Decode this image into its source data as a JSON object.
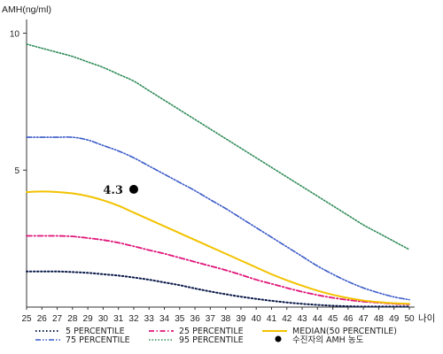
{
  "chart_data": {
    "type": "line",
    "ylabel": "AMH(ng/ml)",
    "xlabel": "나이",
    "x": [
      25,
      26,
      27,
      28,
      29,
      30,
      31,
      32,
      33,
      34,
      35,
      36,
      37,
      38,
      39,
      40,
      41,
      42,
      43,
      44,
      45,
      46,
      47,
      48,
      49,
      50
    ],
    "xlim": [
      25,
      50
    ],
    "ylim": [
      0,
      10.5
    ],
    "yticks": [
      5,
      10
    ],
    "grid": false,
    "legend_position": "bottom",
    "series": [
      {
        "name": "5 PERCENTILE",
        "color": "#0a1a4a",
        "style": "dotted",
        "values": [
          1.3,
          1.3,
          1.3,
          1.28,
          1.25,
          1.2,
          1.15,
          1.08,
          1.0,
          0.9,
          0.8,
          0.68,
          0.57,
          0.47,
          0.38,
          0.3,
          0.23,
          0.17,
          0.12,
          0.08,
          0.05,
          0.03,
          0.02,
          0.02,
          0.02,
          0.02
        ]
      },
      {
        "name": "25 PERCENTILE",
        "color": "#e0157a",
        "style": "dashdot",
        "values": [
          2.6,
          2.6,
          2.6,
          2.58,
          2.52,
          2.45,
          2.35,
          2.22,
          2.08,
          1.95,
          1.8,
          1.65,
          1.5,
          1.35,
          1.18,
          1.0,
          0.85,
          0.7,
          0.56,
          0.44,
          0.34,
          0.26,
          0.2,
          0.16,
          0.12,
          0.1
        ]
      },
      {
        "name": "MEDIAN(50 PERCENTILE)",
        "color": "#f2c200",
        "style": "solid",
        "values": [
          4.2,
          4.22,
          4.2,
          4.15,
          4.05,
          3.9,
          3.7,
          3.45,
          3.2,
          2.95,
          2.7,
          2.45,
          2.2,
          1.95,
          1.7,
          1.45,
          1.2,
          0.98,
          0.78,
          0.6,
          0.45,
          0.33,
          0.24,
          0.18,
          0.14,
          0.12
        ]
      },
      {
        "name": "75 PERCENTILE",
        "color": "#3a5ac8",
        "style": "dashdotdot",
        "values": [
          6.2,
          6.2,
          6.2,
          6.2,
          6.1,
          5.9,
          5.7,
          5.45,
          5.15,
          4.85,
          4.55,
          4.25,
          3.92,
          3.6,
          3.25,
          2.9,
          2.55,
          2.2,
          1.85,
          1.5,
          1.2,
          0.93,
          0.7,
          0.52,
          0.37,
          0.27
        ]
      },
      {
        "name": "95 PERCENTILE",
        "color": "#2e8b57",
        "style": "densedot",
        "values": [
          9.6,
          9.45,
          9.3,
          9.15,
          8.95,
          8.75,
          8.5,
          8.25,
          7.9,
          7.55,
          7.2,
          6.85,
          6.5,
          6.15,
          5.8,
          5.45,
          5.1,
          4.75,
          4.4,
          4.05,
          3.7,
          3.35,
          3.0,
          2.7,
          2.4,
          2.1
        ]
      }
    ],
    "points": [
      {
        "name": "수진자의 AMH 농도",
        "x": 32,
        "y": 4.3,
        "label": "4.3",
        "color": "#000000"
      }
    ]
  }
}
